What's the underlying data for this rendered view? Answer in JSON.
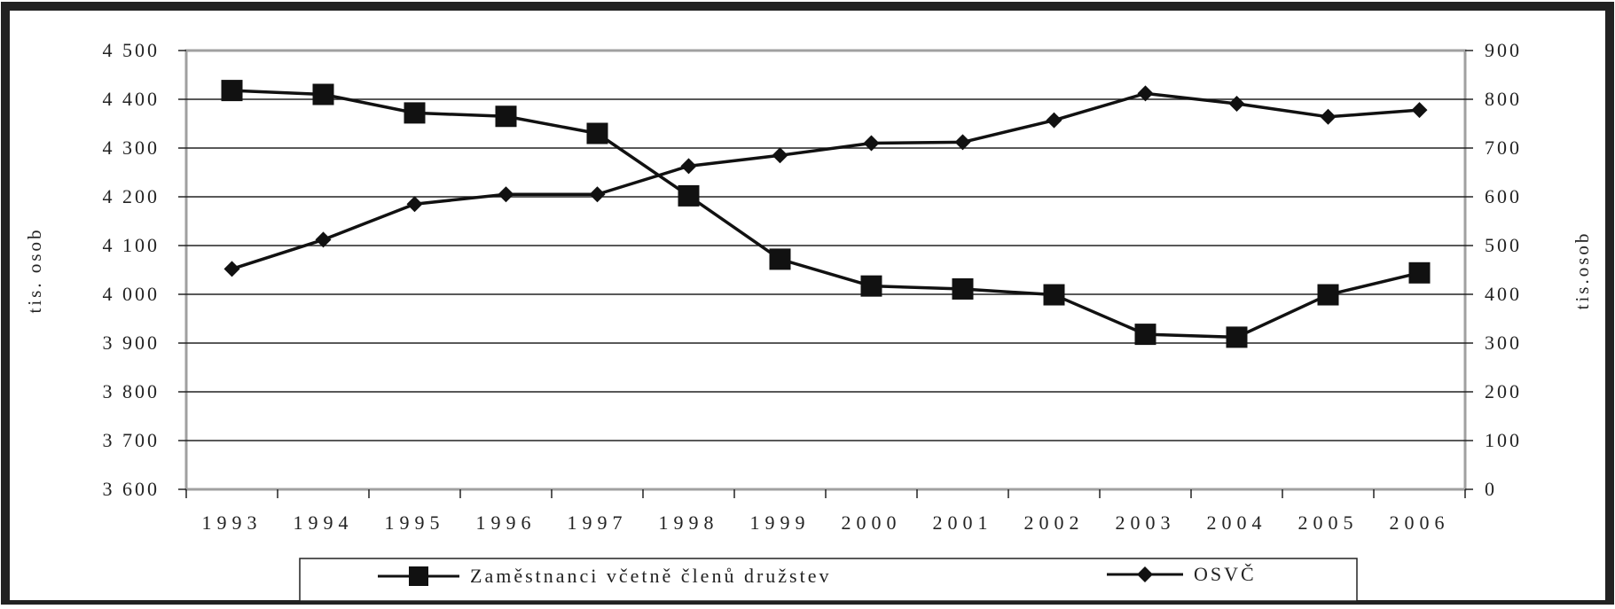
{
  "chart_data": {
    "type": "line",
    "title": "",
    "categories": [
      "1993",
      "1994",
      "1995",
      "1996",
      "1997",
      "1998",
      "1999",
      "2000",
      "2001",
      "2002",
      "2003",
      "2004",
      "2005",
      "2006"
    ],
    "ylabel_left": "tis. osob",
    "ylabel_right": "tis.osob",
    "ylim_left": [
      3600,
      4500
    ],
    "ylim_right": [
      0,
      900
    ],
    "yticks_left": [
      "3 600",
      "3 700",
      "3 800",
      "3 900",
      "4 000",
      "4 100",
      "4 200",
      "4 300",
      "4 400",
      "4 500"
    ],
    "yticks_right": [
      "0",
      "100",
      "200",
      "300",
      "400",
      "500",
      "600",
      "700",
      "800",
      "900"
    ],
    "grid": true,
    "legend_position": "bottom",
    "series": [
      {
        "name": "Zaměstnanci včetně členů družstev",
        "axis": "left",
        "marker": "square",
        "values": [
          4418,
          4410,
          4372,
          4365,
          4330,
          4202,
          4072,
          4017,
          4011,
          3999,
          3918,
          3912,
          3999,
          4044
        ]
      },
      {
        "name": "OSVČ",
        "axis": "right",
        "marker": "diamond",
        "values": [
          452,
          512,
          585,
          605,
          605,
          663,
          685,
          710,
          712,
          757,
          812,
          791,
          764,
          778
        ]
      }
    ]
  }
}
